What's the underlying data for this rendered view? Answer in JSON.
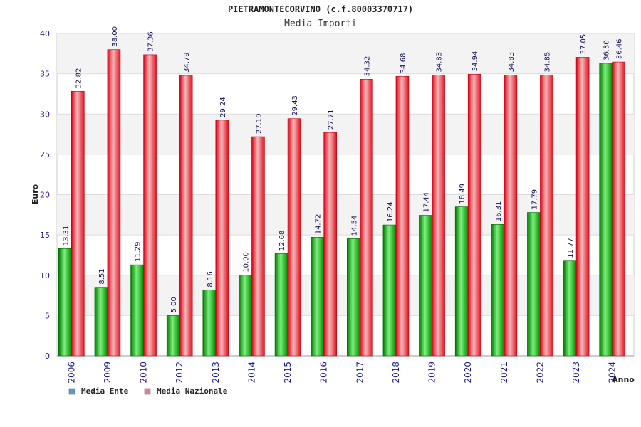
{
  "chart_data": {
    "type": "bar",
    "title": "PIETRAMONTECORVINO (c.f.80003370717)",
    "subtitle": "Media Importi",
    "xlabel": "Anno",
    "ylabel": "Euro",
    "ylim": [
      0,
      40
    ],
    "yticks": [
      0,
      5,
      10,
      15,
      20,
      25,
      30,
      35,
      40
    ],
    "grid": true,
    "legend_position": "bottom-left",
    "categories": [
      "2006",
      "2009",
      "2010",
      "2012",
      "2013",
      "2014",
      "2015",
      "2016",
      "2017",
      "2018",
      "2019",
      "2020",
      "2021",
      "2022",
      "2023",
      "2024"
    ],
    "series": [
      {
        "name": "Media Ente",
        "color": "#00a000",
        "legend_color": "#5b9bd5",
        "values": [
          13.31,
          8.51,
          11.29,
          5.0,
          8.16,
          10.0,
          12.68,
          14.72,
          14.54,
          16.24,
          17.44,
          18.49,
          16.31,
          17.79,
          11.77,
          36.3
        ],
        "labels": [
          "13.31",
          "8.51",
          "11.29",
          "5.00",
          "8.16",
          "10.00",
          "12.68",
          "14.72",
          "14.54",
          "16.24",
          "17.44",
          "18.49",
          "16.31",
          "17.79",
          "11.77",
          "36.30"
        ]
      },
      {
        "name": "Media Nazionale",
        "color": "#e8101c",
        "legend_color": "#e07aa0",
        "values": [
          32.82,
          38.0,
          37.36,
          34.79,
          29.24,
          27.19,
          29.43,
          27.71,
          34.32,
          34.68,
          34.83,
          34.94,
          34.83,
          34.85,
          37.05,
          36.46
        ],
        "labels": [
          "32.82",
          "38.00",
          "37.36",
          "34.79",
          "29.24",
          "27.19",
          "29.43",
          "27.71",
          "34.32",
          "34.68",
          "34.83",
          "34.94",
          "34.83",
          "34.85",
          "37.05",
          "36.46"
        ]
      }
    ]
  }
}
